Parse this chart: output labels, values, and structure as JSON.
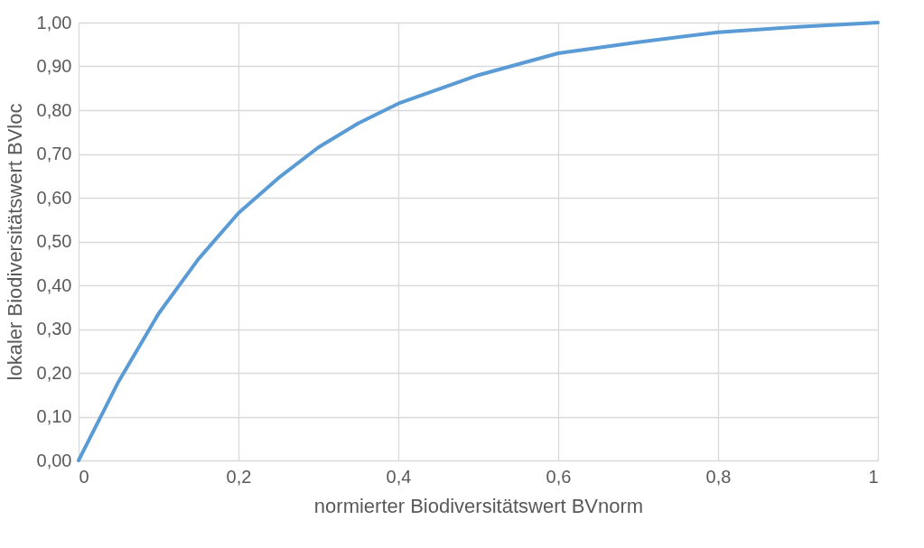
{
  "chart_data": {
    "type": "line",
    "xlabel": "normierter Biodiversitätswert BVnorm",
    "ylabel": "lokaler Biodiversitätswert BVloc",
    "x": [
      0,
      0.05,
      0.1,
      0.15,
      0.2,
      0.25,
      0.3,
      0.35,
      0.4,
      0.5,
      0.6,
      0.7,
      0.8,
      0.9,
      1
    ],
    "series": [
      {
        "color": "#5b9bd5",
        "values": [
          0,
          0.18,
          0.335,
          0.46,
          0.565,
          0.645,
          0.715,
          0.77,
          0.815,
          0.88,
          0.93,
          0.955,
          0.978,
          0.99,
          1.0
        ]
      }
    ],
    "xlim": [
      0,
      1
    ],
    "ylim": [
      0,
      1
    ],
    "xticks": [
      0,
      {
        "value": 0.2,
        "label": "0,2"
      },
      {
        "value": 0.4,
        "label": "0,4"
      },
      {
        "value": 0.6,
        "label": "0,6"
      },
      {
        "value": 0.8,
        "label": "0,8"
      },
      1
    ],
    "yticks": [
      {
        "value": 0,
        "label": "0,00"
      },
      {
        "value": 0.1,
        "label": "0,10"
      },
      {
        "value": 0.2,
        "label": "0,20"
      },
      {
        "value": 0.3,
        "label": "0,30"
      },
      {
        "value": 0.4,
        "label": "0,40"
      },
      {
        "value": 0.5,
        "label": "0,50"
      },
      {
        "value": 0.6,
        "label": "0,60"
      },
      {
        "value": 0.7,
        "label": "0,70"
      },
      {
        "value": 0.8,
        "label": "0,80"
      },
      {
        "value": 0.9,
        "label": "0,90"
      },
      {
        "value": 1,
        "label": "1,00"
      }
    ],
    "grid": true,
    "marker": "none",
    "line_style": "solid",
    "legend": false
  }
}
